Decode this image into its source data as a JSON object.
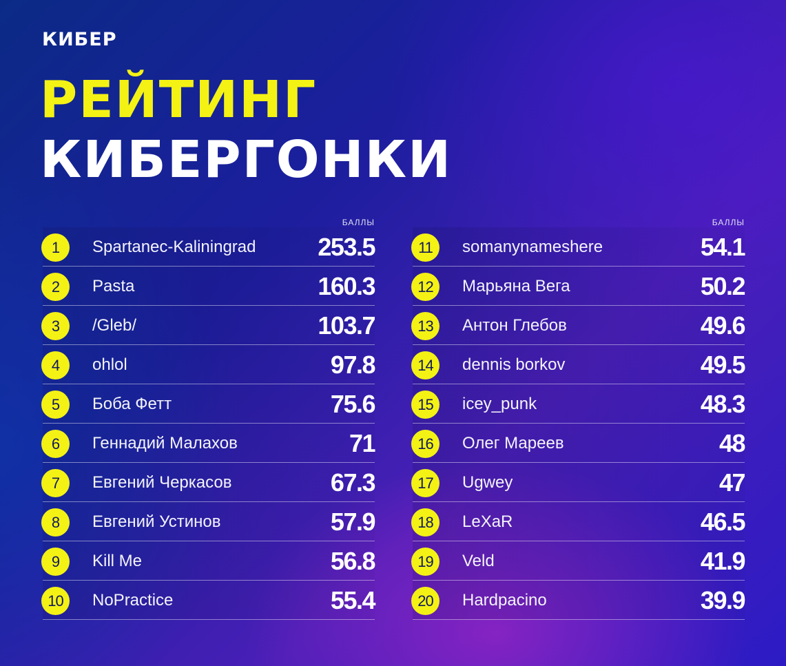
{
  "logo": "КИБЕР",
  "title_line1": "РЕЙТИНГ",
  "title_line2": "КИБЕРГОНКИ",
  "score_header": "БАЛЛЫ",
  "left": [
    {
      "rank": "1",
      "name": "Spartanec-Kaliningrad",
      "score": "253.5"
    },
    {
      "rank": "2",
      "name": "Pasta",
      "score": "160.3"
    },
    {
      "rank": "3",
      "name": "/Gleb/",
      "score": "103.7"
    },
    {
      "rank": "4",
      "name": "ohlol",
      "score": "97.8"
    },
    {
      "rank": "5",
      "name": "Боба Фетт",
      "score": "75.6"
    },
    {
      "rank": "6",
      "name": "Геннадий Малахов",
      "score": "71"
    },
    {
      "rank": "7",
      "name": "Евгений Черкасов",
      "score": "67.3"
    },
    {
      "rank": "8",
      "name": "Евгений Устинов",
      "score": "57.9"
    },
    {
      "rank": "9",
      "name": "Kill Me",
      "score": "56.8"
    },
    {
      "rank": "10",
      "name": "NoPractice",
      "score": "55.4"
    }
  ],
  "right": [
    {
      "rank": "11",
      "name": "somanynameshere",
      "score": "54.1"
    },
    {
      "rank": "12",
      "name": "Марьяна Вега",
      "score": "50.2"
    },
    {
      "rank": "13",
      "name": "Антон Глебов",
      "score": "49.6"
    },
    {
      "rank": "14",
      "name": "dennis borkov",
      "score": "49.5"
    },
    {
      "rank": "15",
      "name": "icey_punk",
      "score": "48.3"
    },
    {
      "rank": "16",
      "name": "Олег Мареев",
      "score": "48"
    },
    {
      "rank": "17",
      "name": "Ugwey",
      "score": "47"
    },
    {
      "rank": "18",
      "name": "LeXaR",
      "score": "46.5"
    },
    {
      "rank": "19",
      "name": "Veld",
      "score": "41.9"
    },
    {
      "rank": "20",
      "name": "Hardpacino",
      "score": "39.9"
    }
  ],
  "colors": {
    "accent": "#f4f214",
    "text": "#ffffff"
  }
}
